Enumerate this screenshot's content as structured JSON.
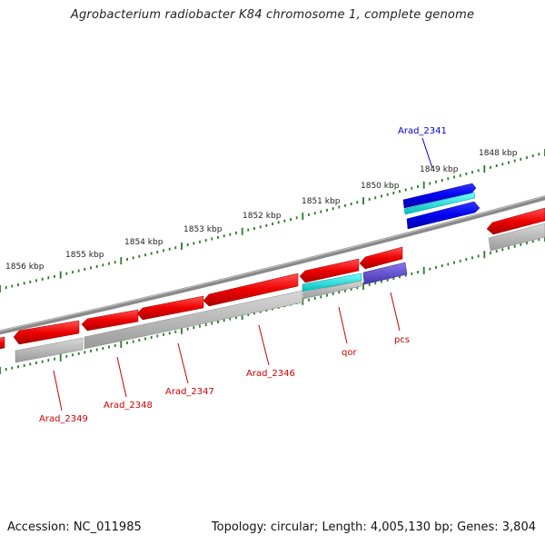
{
  "header": {
    "title": "Agrobacterium radiobacter K84 chromosome 1, complete genome"
  },
  "footer": {
    "accession": "Accession: NC_011985",
    "stats": "Topology: circular; Length: 4,005,130 bp; Genes: 3,804"
  },
  "scale_labels": [
    "1848 kbp",
    "1849 kbp",
    "1850 kbp",
    "1851 kbp",
    "1852 kbp",
    "1853 kbp",
    "1854 kbp",
    "1855 kbp",
    "1856 kbp"
  ],
  "gene_labels": [
    {
      "text": "Arad_2341",
      "color": "#0000cc"
    },
    {
      "text": "qor",
      "color": "#cc0000"
    },
    {
      "text": "pcs",
      "color": "#cc0000"
    },
    {
      "text": "Arad_2346",
      "color": "#cc0000"
    },
    {
      "text": "Arad_2347",
      "color": "#cc0000"
    },
    {
      "text": "Arad_2348",
      "color": "#cc0000"
    },
    {
      "text": "Arad_2349",
      "color": "#cc0000"
    }
  ],
  "colors": {
    "backbone": "#808080",
    "ticks": "#2a7a2a",
    "gene_forward": "#0000ee",
    "gene_reverse": "#ee0000",
    "cds_cyan": "#00dddd",
    "cds_purple": "#6655cc",
    "cds_gray": "#b0b0b0"
  }
}
